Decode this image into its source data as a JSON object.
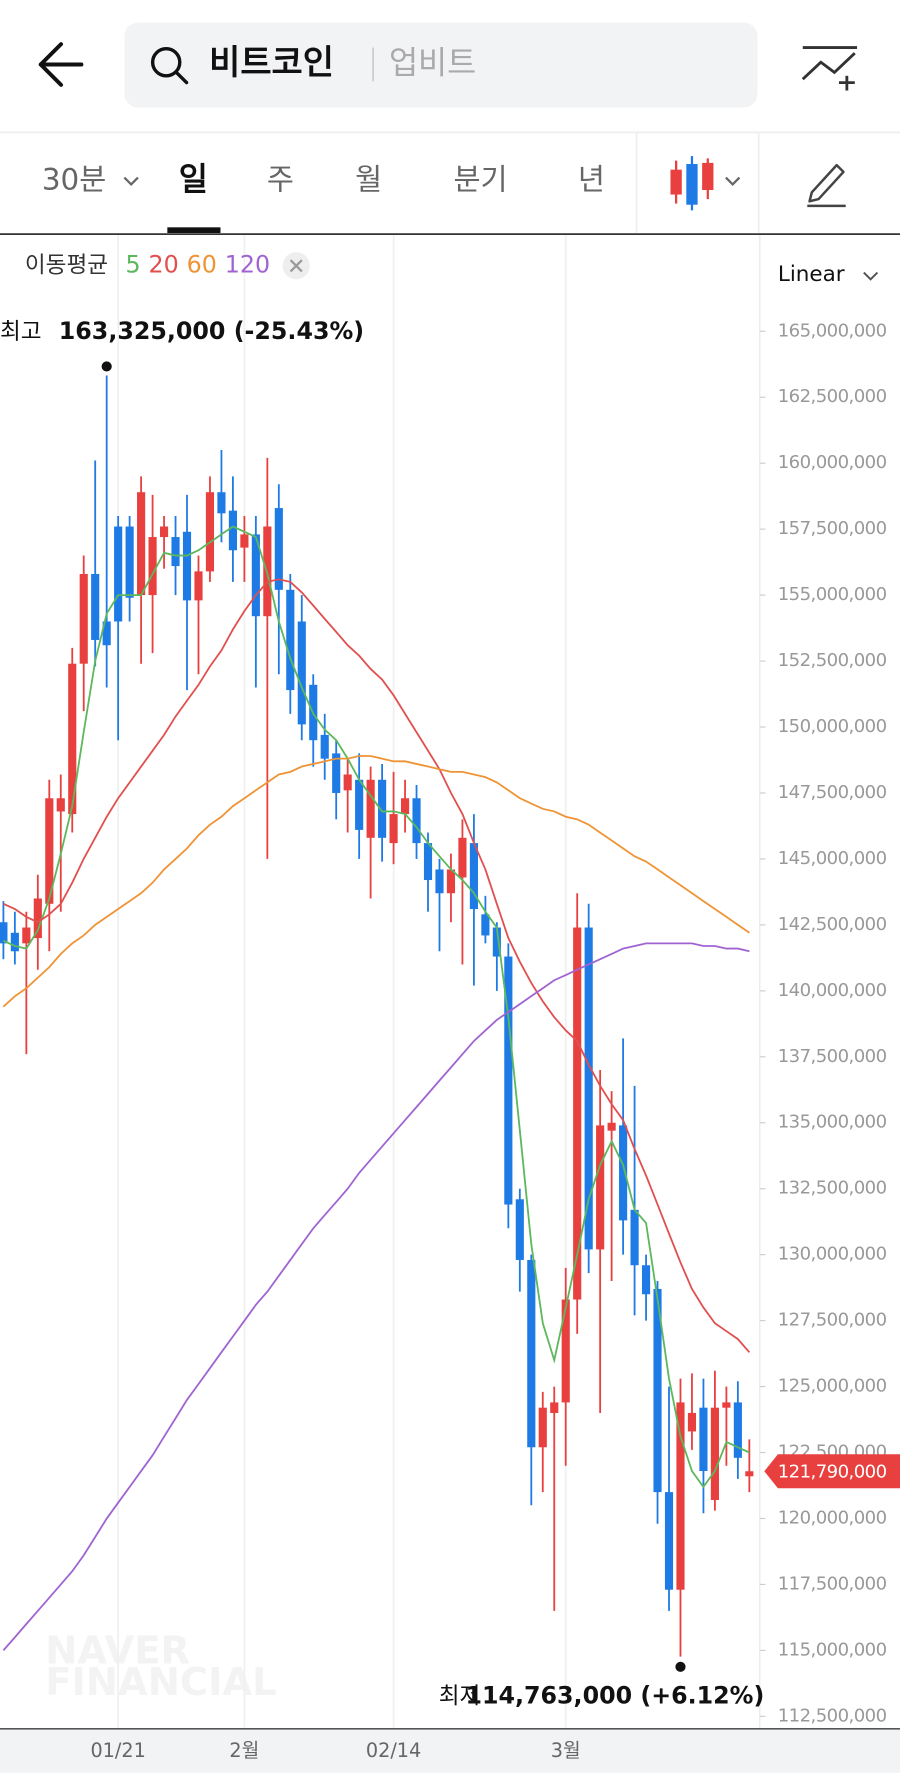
{
  "header": {
    "search_query": "비트코인",
    "exchange": "업비트"
  },
  "tabs": [
    "30분",
    "일",
    "주",
    "월",
    "분기",
    "년"
  ],
  "scale_mode": "Linear",
  "chart_data": {
    "type": "candlestick",
    "legend_title": "이동평균",
    "watermark": [
      "NAVER",
      "FINANCIAL"
    ],
    "up_color": "#e8403f",
    "down_color": "#1e7be6",
    "categories": [
      null,
      null,
      null,
      null,
      null,
      null,
      null,
      null,
      null,
      null,
      "01/21",
      null,
      null,
      null,
      null,
      null,
      null,
      null,
      null,
      null,
      null,
      "2월",
      null,
      null,
      null,
      null,
      null,
      null,
      null,
      null,
      null,
      null,
      null,
      null,
      "02/14",
      null,
      null,
      null,
      null,
      null,
      null,
      null,
      null,
      null,
      null,
      null,
      null,
      null,
      null,
      "3월",
      null,
      null,
      null,
      null,
      null,
      null,
      null,
      null,
      null,
      null,
      null,
      null,
      null,
      null,
      null,
      null
    ],
    "open": [
      142600000,
      142200000,
      141800000,
      142000000,
      143300000,
      146800000,
      146700000,
      152400000,
      155800000,
      154000000,
      157600000,
      157600000,
      155000000,
      155000000,
      157200000,
      157200000,
      157400000,
      154800000,
      155900000,
      158900000,
      158200000,
      156800000,
      157300000,
      154200000,
      158300000,
      155200000,
      154000000,
      151600000,
      149700000,
      149000000,
      147600000,
      148000000,
      145800000,
      148000000,
      145600000,
      146700000,
      147300000,
      145600000,
      144600000,
      143700000,
      144300000,
      145600000,
      142900000,
      142400000,
      141300000,
      132100000,
      129800000,
      122700000,
      124000000,
      124400000,
      128300000,
      142400000,
      130200000,
      134700000,
      134900000,
      131700000,
      129600000,
      128700000,
      121000000,
      117300000,
      123300000,
      124200000,
      120700000,
      124200000,
      124400000,
      121600000
    ],
    "high": [
      143400000,
      143000000,
      143000000,
      144400000,
      148000000,
      148200000,
      153000000,
      156500000,
      160100000,
      163325000,
      158000000,
      158000000,
      159500000,
      158800000,
      158000000,
      158000000,
      158800000,
      156500000,
      159500000,
      160500000,
      159500000,
      158000000,
      158000000,
      160200000,
      159200000,
      155800000,
      155000000,
      152000000,
      150500000,
      149500000,
      148800000,
      149000000,
      148500000,
      148600000,
      148300000,
      148000000,
      147800000,
      146000000,
      145000000,
      145200000,
      146500000,
      146700000,
      143600000,
      142600000,
      141800000,
      132500000,
      130000000,
      124800000,
      125000000,
      129500000,
      143700000,
      143300000,
      137000000,
      136200000,
      138200000,
      136400000,
      130000000,
      129000000,
      125000000,
      125300000,
      125500000,
      125300000,
      125600000,
      125000000,
      125200000,
      123000000
    ],
    "low": [
      141200000,
      141000000,
      137600000,
      140800000,
      141500000,
      143000000,
      146000000,
      150600000,
      152300000,
      151500000,
      149500000,
      154000000,
      152400000,
      152800000,
      156000000,
      155000000,
      151400000,
      152000000,
      155500000,
      157000000,
      155500000,
      155500000,
      151500000,
      145000000,
      152000000,
      150500000,
      149500000,
      148500000,
      148000000,
      146500000,
      146000000,
      145000000,
      143500000,
      144900000,
      144800000,
      146000000,
      145000000,
      143000000,
      141500000,
      142600000,
      141000000,
      140200000,
      141800000,
      140000000,
      131000000,
      128600000,
      120500000,
      121000000,
      116500000,
      122000000,
      127000000,
      129300000,
      124000000,
      129000000,
      130000000,
      127700000,
      127500000,
      119800000,
      116500000,
      114763000,
      122600000,
      120200000,
      120300000,
      122000000,
      121500000,
      121000000
    ],
    "close": [
      141800000,
      141500000,
      142400000,
      143500000,
      147300000,
      147300000,
      152400000,
      155800000,
      153300000,
      153100000,
      154000000,
      154900000,
      158900000,
      157200000,
      157600000,
      156100000,
      154800000,
      155900000,
      158900000,
      158100000,
      156700000,
      157300000,
      154200000,
      157600000,
      155200000,
      151400000,
      150100000,
      149500000,
      148800000,
      147500000,
      148200000,
      146100000,
      148000000,
      145800000,
      146700000,
      147300000,
      145600000,
      144200000,
      143700000,
      144600000,
      145800000,
      143100000,
      142100000,
      141300000,
      131900000,
      129800000,
      122700000,
      124200000,
      124400000,
      128300000,
      142400000,
      130200000,
      134900000,
      135000000,
      131300000,
      129600000,
      128500000,
      121000000,
      117300000,
      124400000,
      124000000,
      121800000,
      124200000,
      124400000,
      122300000,
      121790000
    ],
    "series": [
      {
        "name": "5",
        "color": "#5cb85c",
        "values": [
          141900000,
          141700000,
          141600000,
          142300000,
          143500000,
          145200000,
          147000000,
          149800000,
          152500000,
          154300000,
          155000000,
          155000000,
          155000000,
          155800000,
          156600000,
          156500000,
          156500000,
          156700000,
          157000000,
          157300000,
          157600000,
          157400000,
          157200000,
          155800000,
          154000000,
          152600000,
          151500000,
          150500000,
          149900000,
          149500000,
          148800000,
          148000000,
          147400000,
          146800000,
          146800000,
          146700000,
          146200000,
          145600000,
          145100000,
          144600000,
          144200000,
          143700000,
          143000000,
          142400000,
          139000000,
          134700000,
          130400000,
          127400000,
          126000000,
          128000000,
          130000000,
          132100000,
          133400000,
          134300000,
          133400000,
          131700000,
          131200000,
          128300000,
          125300000,
          123100000,
          121800000,
          121200000,
          121800000,
          122900000,
          122700000,
          122500000
        ]
      },
      {
        "name": "20",
        "color": "#e0504f",
        "values": [
          143300000,
          143100000,
          142800000,
          142600000,
          142900000,
          143300000,
          144100000,
          145000000,
          145800000,
          146600000,
          147300000,
          147900000,
          148500000,
          149100000,
          149700000,
          150400000,
          151000000,
          151600000,
          152300000,
          152900000,
          153700000,
          154400000,
          155000000,
          155500000,
          155600000,
          155500000,
          155100000,
          154600000,
          154100000,
          153600000,
          153100000,
          152700000,
          152200000,
          151800000,
          151200000,
          150500000,
          149800000,
          149100000,
          148400000,
          147500000,
          146700000,
          145600000,
          144600000,
          143300000,
          142000000,
          141100000,
          140300000,
          139600000,
          139000000,
          138500000,
          138100000,
          137200000,
          136400000,
          135700000,
          135100000,
          134000000,
          133000000,
          131900000,
          130800000,
          129700000,
          128700000,
          128000000,
          127400000,
          127100000,
          126800000,
          126300000
        ]
      },
      {
        "name": "60",
        "color": "#ef9436",
        "values": [
          139400000,
          139800000,
          140100000,
          140500000,
          140900000,
          141400000,
          141800000,
          142100000,
          142500000,
          142800000,
          143100000,
          143400000,
          143700000,
          144100000,
          144600000,
          145000000,
          145400000,
          145900000,
          146300000,
          146600000,
          147000000,
          147300000,
          147600000,
          147900000,
          148200000,
          148300000,
          148500000,
          148600000,
          148700000,
          148800000,
          148800000,
          148900000,
          148900000,
          148800000,
          148700000,
          148700000,
          148600000,
          148500000,
          148400000,
          148300000,
          148300000,
          148200000,
          148100000,
          147900000,
          147600000,
          147300000,
          147100000,
          146900000,
          146800000,
          146600000,
          146500000,
          146300000,
          146000000,
          145700000,
          145400000,
          145100000,
          144900000,
          144600000,
          144300000,
          144000000,
          143700000,
          143400000,
          143100000,
          142800000,
          142500000,
          142200000
        ]
      },
      {
        "name": "120",
        "color": "#a064d2",
        "values": [
          115000000,
          115500000,
          116000000,
          116500000,
          117000000,
          117500000,
          118000000,
          118600000,
          119300000,
          120000000,
          120600000,
          121200000,
          121800000,
          122400000,
          123100000,
          123800000,
          124500000,
          125100000,
          125700000,
          126300000,
          126900000,
          127500000,
          128100000,
          128600000,
          129200000,
          129800000,
          130400000,
          131000000,
          131500000,
          132000000,
          132500000,
          133100000,
          133600000,
          134100000,
          134600000,
          135100000,
          135600000,
          136100000,
          136600000,
          137100000,
          137600000,
          138100000,
          138500000,
          138900000,
          139200000,
          139500000,
          139800000,
          140100000,
          140400000,
          140600000,
          140800000,
          141000000,
          141200000,
          141400000,
          141600000,
          141700000,
          141800000,
          141800000,
          141800000,
          141800000,
          141800000,
          141700000,
          141700000,
          141600000,
          141600000,
          141500000
        ]
      }
    ],
    "ylim": [
      112070000,
      168640000
    ],
    "yticks": [
      {
        "value": 112500000,
        "label": "112,500,000"
      },
      {
        "value": 115000000,
        "label": "115,000,000"
      },
      {
        "value": 117500000,
        "label": "117,500,000"
      },
      {
        "value": 120000000,
        "label": "120,000,000"
      },
      {
        "value": 122500000,
        "label": "122,500,000"
      },
      {
        "value": 125000000,
        "label": "125,000,000"
      },
      {
        "value": 127500000,
        "label": "127,500,000"
      },
      {
        "value": 130000000,
        "label": "130,000,000"
      },
      {
        "value": 132500000,
        "label": "132,500,000"
      },
      {
        "value": 135000000,
        "label": "135,000,000"
      },
      {
        "value": 137500000,
        "label": "137,500,000"
      },
      {
        "value": 140000000,
        "label": "140,000,000"
      },
      {
        "value": 142500000,
        "label": "142,500,000"
      },
      {
        "value": 145000000,
        "label": "145,000,000"
      },
      {
        "value": 147500000,
        "label": "147,500,000"
      },
      {
        "value": 150000000,
        "label": "150,000,000"
      },
      {
        "value": 152500000,
        "label": "152,500,000"
      },
      {
        "value": 155000000,
        "label": "155,000,000"
      },
      {
        "value": 157500000,
        "label": "157,500,000"
      },
      {
        "value": 160000000,
        "label": "160,000,000"
      },
      {
        "value": 162500000,
        "label": "162,500,000"
      },
      {
        "value": 165000000,
        "label": "165,000,000"
      }
    ],
    "high_annotation": {
      "label": "최고",
      "text": "163,325,000 (-25.43%)"
    },
    "low_annotation": {
      "label": "최저",
      "text": "114,763,000 (+6.12%)"
    },
    "current_price": {
      "value": 121790000,
      "label": "121,790,000"
    }
  }
}
